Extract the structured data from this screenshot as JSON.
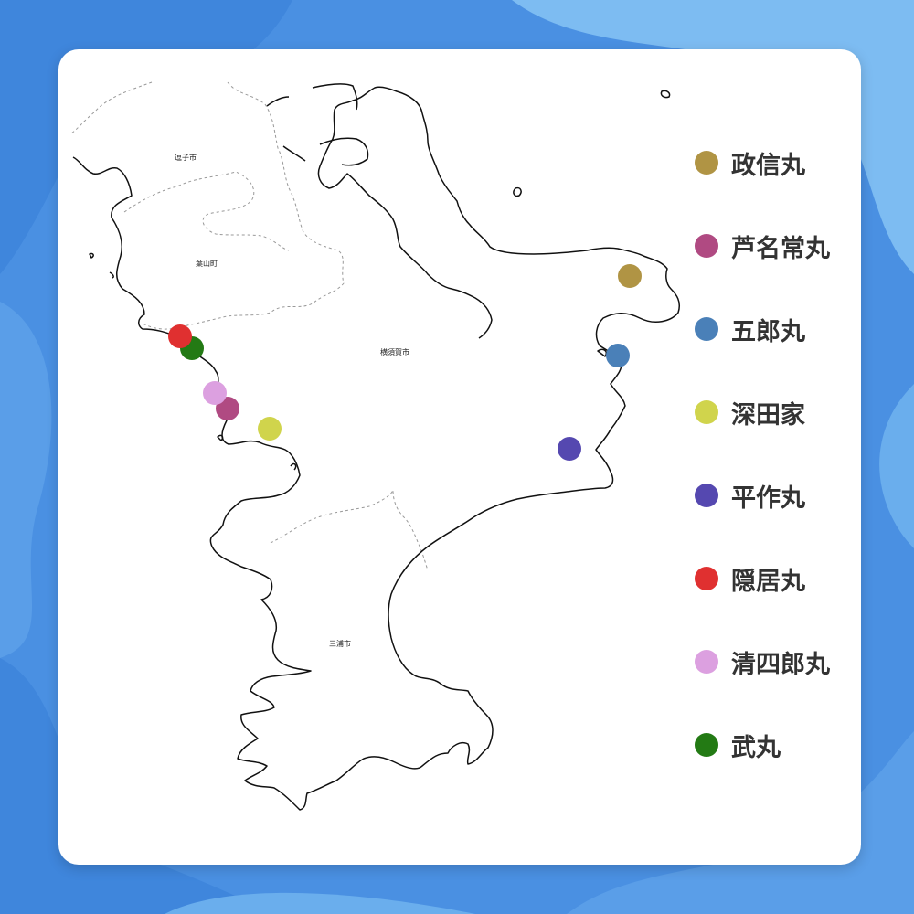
{
  "background": {
    "base": "#4a90e2",
    "light": "#7dbcf2",
    "mid": "#5a9ee8"
  },
  "map": {
    "cities": [
      {
        "id": "zushi",
        "label": "逗子市"
      },
      {
        "id": "hayama",
        "label": "葉山町"
      },
      {
        "id": "yokosuka",
        "label": "横須賀市"
      },
      {
        "id": "miura",
        "label": "三浦市"
      }
    ]
  },
  "markers": [
    {
      "id": "seishin",
      "label": "政信丸",
      "color": "#b09444"
    },
    {
      "id": "ashina",
      "label": "芦名常丸",
      "color": "#b04a82"
    },
    {
      "id": "goro",
      "label": "五郎丸",
      "color": "#4a80b8"
    },
    {
      "id": "fukada",
      "label": "深田家",
      "color": "#d0d44c"
    },
    {
      "id": "heisaku",
      "label": "平作丸",
      "color": "#5548b0"
    },
    {
      "id": "inkyo",
      "label": "隠居丸",
      "color": "#e03030"
    },
    {
      "id": "seishiro",
      "label": "清四郎丸",
      "color": "#dca0e0"
    },
    {
      "id": "take",
      "label": "武丸",
      "color": "#237a14"
    }
  ]
}
